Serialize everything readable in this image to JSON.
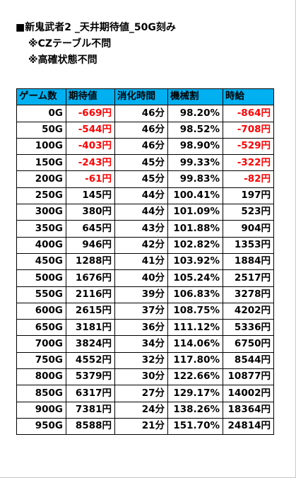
{
  "title": "■新鬼武者2 _天井期待値_50G刻み",
  "notes": [
    "※CZテーブル不問",
    "※高確状態不問"
  ],
  "table": {
    "headers": [
      "ゲーム数",
      "期待値",
      "消化時間",
      "機械割",
      "時給"
    ],
    "rows": [
      {
        "games": "0G",
        "expected": "-669円",
        "time": "46分",
        "payout": "98.20%",
        "hourly": "-864円"
      },
      {
        "games": "50G",
        "expected": "-544円",
        "time": "46分",
        "payout": "98.52%",
        "hourly": "-708円"
      },
      {
        "games": "100G",
        "expected": "-403円",
        "time": "46分",
        "payout": "98.90%",
        "hourly": "-529円"
      },
      {
        "games": "150G",
        "expected": "-243円",
        "time": "45分",
        "payout": "99.33%",
        "hourly": "-322円"
      },
      {
        "games": "200G",
        "expected": "-61円",
        "time": "45分",
        "payout": "99.83%",
        "hourly": "-82円"
      },
      {
        "games": "250G",
        "expected": "145円",
        "time": "44分",
        "payout": "100.41%",
        "hourly": "197円"
      },
      {
        "games": "300G",
        "expected": "380円",
        "time": "44分",
        "payout": "101.09%",
        "hourly": "523円"
      },
      {
        "games": "350G",
        "expected": "645円",
        "time": "43分",
        "payout": "101.88%",
        "hourly": "904円"
      },
      {
        "games": "400G",
        "expected": "946円",
        "time": "42分",
        "payout": "102.82%",
        "hourly": "1353円"
      },
      {
        "games": "450G",
        "expected": "1288円",
        "time": "41分",
        "payout": "103.92%",
        "hourly": "1884円"
      },
      {
        "games": "500G",
        "expected": "1676円",
        "time": "40分",
        "payout": "105.24%",
        "hourly": "2517円"
      },
      {
        "games": "550G",
        "expected": "2116円",
        "time": "39分",
        "payout": "106.83%",
        "hourly": "3278円"
      },
      {
        "games": "600G",
        "expected": "2615円",
        "time": "37分",
        "payout": "108.75%",
        "hourly": "4202円"
      },
      {
        "games": "650G",
        "expected": "3181円",
        "time": "36分",
        "payout": "111.12%",
        "hourly": "5336円"
      },
      {
        "games": "700G",
        "expected": "3824円",
        "time": "34分",
        "payout": "114.06%",
        "hourly": "6750円"
      },
      {
        "games": "750G",
        "expected": "4552円",
        "time": "32分",
        "payout": "117.80%",
        "hourly": "8544円"
      },
      {
        "games": "800G",
        "expected": "5379円",
        "time": "30分",
        "payout": "122.66%",
        "hourly": "10877円"
      },
      {
        "games": "850G",
        "expected": "6317円",
        "time": "27分",
        "payout": "129.17%",
        "hourly": "14002円"
      },
      {
        "games": "900G",
        "expected": "7381円",
        "time": "24分",
        "payout": "138.26%",
        "hourly": "18364円"
      },
      {
        "games": "950G",
        "expected": "8588円",
        "time": "21分",
        "payout": "151.70%",
        "hourly": "24814円"
      }
    ]
  },
  "colors": {
    "header_bg": "#00b0f0",
    "negative_text": "#ff0000",
    "text": "#000000"
  }
}
